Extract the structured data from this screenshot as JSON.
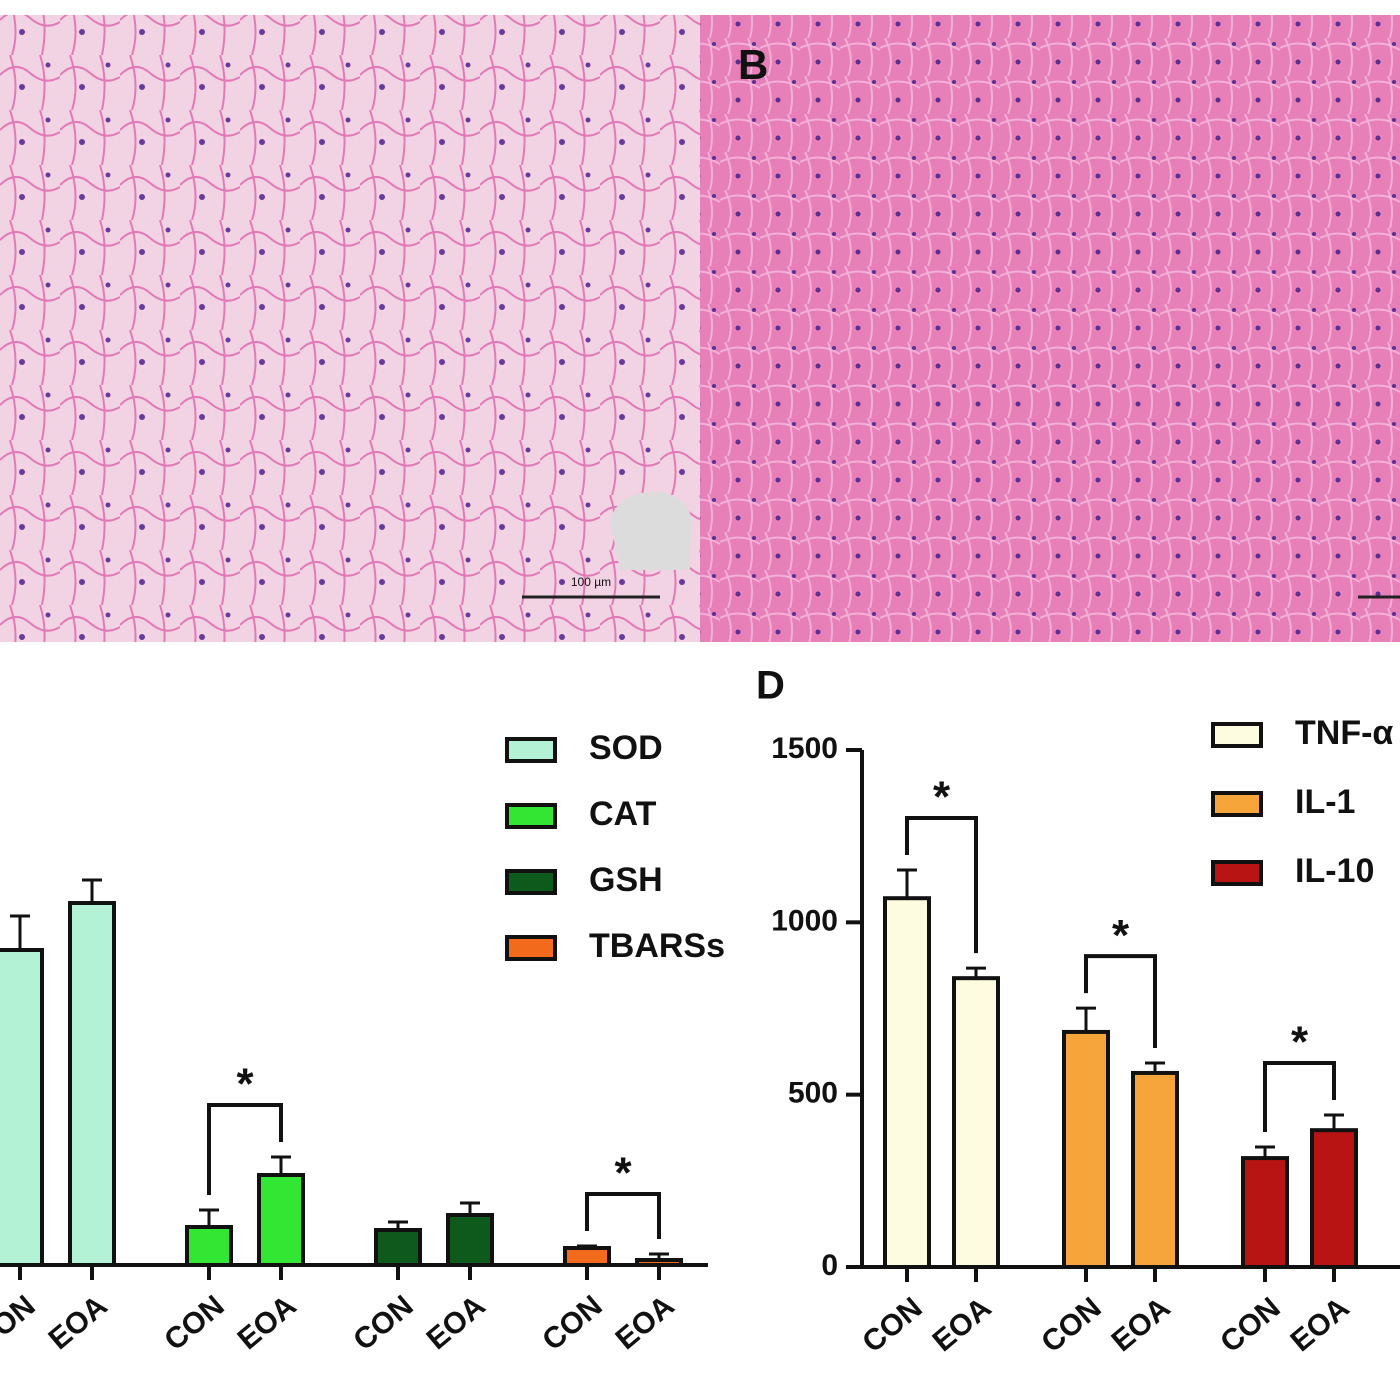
{
  "panel_labels": [
    "B",
    "D"
  ],
  "scale_bar_label": "100 µm",
  "chart_data": [
    {
      "type": "bar",
      "categories": [
        "CON",
        "EOA"
      ],
      "series": [
        {
          "name": "SOD",
          "color": "#b3f2d4",
          "values": [
            315,
            362
          ],
          "errors": [
            34,
            23
          ]
        },
        {
          "name": "CAT",
          "color": "#33e633",
          "values": [
            38,
            90
          ],
          "errors": [
            17,
            18
          ],
          "annotation": "*"
        },
        {
          "name": "GSH",
          "color": "#0e5a1c",
          "values": [
            35,
            50
          ],
          "errors": [
            8,
            12
          ]
        },
        {
          "name": "TBARSs",
          "color": "#f26a1c",
          "values": [
            17,
            5
          ],
          "errors": [
            2,
            6
          ],
          "annotation": "*"
        }
      ]
    },
    {
      "type": "bar",
      "categories": [
        "CON",
        "EOA"
      ],
      "ylim": [
        0,
        1500
      ],
      "yticks": [
        0,
        500,
        1000,
        1500
      ],
      "series": [
        {
          "name": "TNF-α",
          "color": "#fdfbe0",
          "values": [
            1070,
            838
          ],
          "errors": [
            82,
            29
          ],
          "annotation": "*"
        },
        {
          "name": "IL-1",
          "color": "#f5a53a",
          "values": [
            682,
            563
          ],
          "errors": [
            69,
            29
          ],
          "annotation": "*"
        },
        {
          "name": "IL-10",
          "color": "#b81414",
          "values": [
            316,
            397
          ],
          "errors": [
            32,
            44
          ],
          "annotation": "*"
        }
      ]
    }
  ]
}
